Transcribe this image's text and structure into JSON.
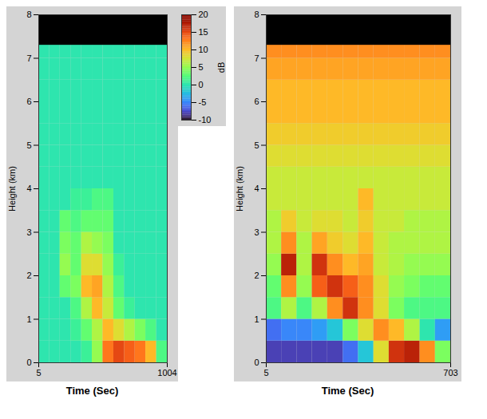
{
  "chart_data": [
    {
      "type": "heatmap",
      "xlabel": "Time (Sec)",
      "ylabel": "Height (km)",
      "xlim": [
        5,
        1004
      ],
      "xticks": [
        5,
        1004
      ],
      "ylim": [
        0,
        8
      ],
      "yticks": [
        0,
        1,
        2,
        3,
        4,
        5,
        6,
        7,
        8
      ],
      "x_edges": [
        5,
        88,
        171,
        255,
        338,
        421,
        504,
        588,
        671,
        754,
        837,
        921,
        1004
      ],
      "y_edges": [
        0,
        0.5,
        1,
        1.5,
        2,
        2.5,
        3,
        3.5,
        4,
        4.5,
        5,
        5.5,
        6,
        6.5,
        7,
        7.5
      ],
      "cells": [
        [
          0,
          0,
          0,
          0,
          1,
          5,
          13,
          15,
          14,
          13,
          10,
          2
        ],
        [
          0,
          0,
          0,
          1,
          3,
          6,
          10,
          8,
          6,
          4,
          2,
          0
        ],
        [
          0,
          0,
          0,
          2,
          6,
          10,
          7,
          3,
          1,
          0,
          0,
          0
        ],
        [
          0,
          0,
          3,
          4,
          10,
          11,
          6,
          2,
          0,
          0,
          0,
          0
        ],
        [
          0,
          0,
          5,
          3,
          8,
          8,
          5,
          1,
          0,
          0,
          0,
          0
        ],
        [
          0,
          0,
          4,
          3,
          6,
          5,
          4,
          0,
          0,
          0,
          0,
          0
        ],
        [
          0,
          0,
          3,
          2,
          3,
          3,
          3,
          0,
          0,
          0,
          0,
          0
        ],
        [
          0,
          0,
          0,
          1,
          1,
          2,
          2,
          0,
          0,
          0,
          0,
          0
        ],
        [
          0,
          0,
          0,
          0,
          0,
          0,
          0,
          0,
          0,
          0,
          0,
          0
        ],
        [
          0,
          0,
          0,
          0,
          0,
          0,
          0,
          0,
          0,
          0,
          0,
          0
        ],
        [
          0,
          0,
          0,
          0,
          0,
          0,
          0,
          0,
          0,
          0,
          0,
          0
        ],
        [
          0,
          0,
          0,
          0,
          0,
          0,
          0,
          0,
          0,
          0,
          0,
          0
        ],
        [
          0,
          0,
          0,
          0,
          0,
          0,
          0,
          0,
          0,
          0,
          0,
          0
        ],
        [
          0,
          0,
          0,
          0,
          0,
          0,
          0,
          0,
          0,
          0,
          0,
          0
        ],
        [
          0,
          0,
          0,
          0,
          0,
          0,
          0,
          0,
          0,
          0,
          0,
          0
        ]
      ],
      "no_data_above": 7.3,
      "colorbar": {
        "label": "dB",
        "range": [
          -10,
          20
        ],
        "ticks": [
          -10,
          -5,
          0,
          5,
          10,
          15,
          20
        ]
      }
    },
    {
      "type": "heatmap",
      "xlabel": "Time (Sec)",
      "ylabel": "Height (km)",
      "xlim": [
        5,
        703
      ],
      "xticks": [
        5,
        703
      ],
      "ylim": [
        0,
        8
      ],
      "yticks": [
        0,
        1,
        2,
        3,
        4,
        5,
        6,
        7,
        8
      ],
      "x_edges": [
        5,
        63,
        121,
        179,
        237,
        296,
        354,
        412,
        470,
        528,
        587,
        645,
        703
      ],
      "y_edges": [
        0,
        0.5,
        1,
        1.5,
        2,
        2.5,
        3,
        3.5,
        4,
        4.5,
        5,
        5.5,
        6,
        6.5,
        7,
        7.5
      ],
      "cells": [
        [
          -8,
          -8,
          -8,
          -8,
          -8,
          -6,
          -2,
          8,
          16,
          17,
          12,
          4
        ],
        [
          -6,
          -5,
          -5,
          -4,
          -2,
          4,
          8,
          12,
          10,
          6,
          0,
          -4
        ],
        [
          2,
          6,
          2,
          6,
          12,
          16,
          12,
          8,
          4,
          2,
          2,
          2
        ],
        [
          3,
          12,
          5,
          14,
          16,
          14,
          12,
          8,
          5,
          4,
          3,
          3
        ],
        [
          5,
          17,
          6,
          16,
          12,
          10,
          11,
          7,
          6,
          5,
          5,
          5
        ],
        [
          6,
          12,
          6,
          11,
          9,
          8,
          10,
          7,
          6,
          6,
          6,
          6
        ],
        [
          6,
          9,
          7,
          8,
          8,
          7,
          9,
          7,
          7,
          6,
          6,
          6
        ],
        [
          7,
          7,
          7,
          7,
          7,
          7,
          10,
          7,
          7,
          7,
          7,
          7
        ],
        [
          7,
          7,
          7,
          7,
          7,
          7,
          7,
          7,
          7,
          7,
          7,
          7
        ],
        [
          8,
          8,
          8,
          8,
          8,
          8,
          8,
          8,
          8,
          8,
          8,
          8
        ],
        [
          9,
          9,
          9,
          9,
          9,
          9,
          9,
          9,
          9,
          9,
          9,
          9
        ],
        [
          10,
          10,
          10,
          10,
          10,
          10,
          10,
          10,
          10,
          10,
          10,
          10
        ],
        [
          10,
          10,
          10,
          10,
          10,
          10,
          10,
          10,
          10,
          10,
          10,
          10
        ],
        [
          11,
          11,
          11,
          11,
          11,
          11,
          11,
          11,
          11,
          11,
          11,
          11
        ],
        [
          12,
          12,
          12,
          12,
          12,
          12,
          12,
          12,
          12,
          12,
          12,
          12
        ]
      ],
      "no_data_above": 7.3
    }
  ]
}
